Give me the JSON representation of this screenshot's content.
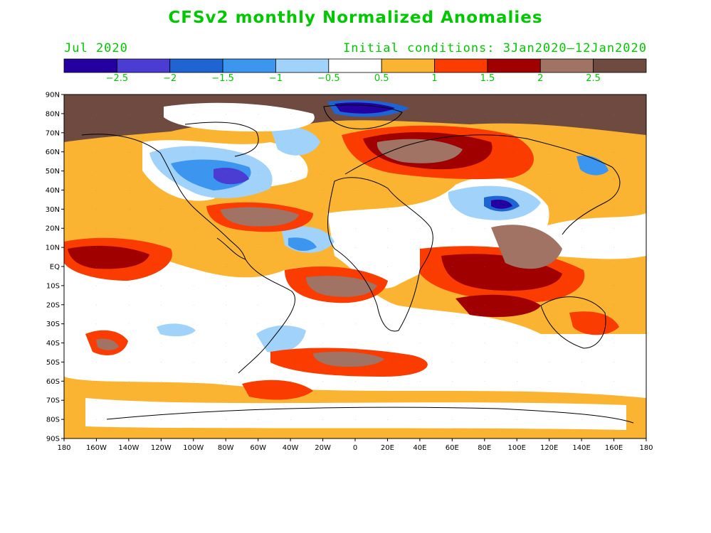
{
  "title": "CFSv2 monthly Normalized Anomalies",
  "valid_month": "Jul 2020",
  "initial_conditions": "Initial conditions: 3Jan2020–12Jan2020",
  "colorbar": {
    "colors": [
      "#2400a0",
      "#4b3cd2",
      "#1e64d2",
      "#3c96f0",
      "#a0d2fa",
      "#ffffff",
      "#fab432",
      "#fa3c00",
      "#a00000",
      "#a07364",
      "#6e4a40"
    ],
    "labels": [
      "−2.5",
      "−2",
      "−1.5",
      "−1",
      "−0.5",
      "0.5",
      "1",
      "1.5",
      "2",
      "2.5"
    ]
  },
  "axes": {
    "x_ticks": [
      "180",
      "160W",
      "140W",
      "120W",
      "100W",
      "80W",
      "60W",
      "40W",
      "20W",
      "0",
      "20E",
      "40E",
      "60E",
      "80E",
      "100E",
      "120E",
      "140E",
      "160E",
      "180"
    ],
    "y_ticks": [
      "90N",
      "80N",
      "70N",
      "60N",
      "50N",
      "40N",
      "30N",
      "20N",
      "10N",
      "EQ",
      "10S",
      "20S",
      "30S",
      "40S",
      "50S",
      "60S",
      "70S",
      "80S",
      "90S"
    ]
  }
}
